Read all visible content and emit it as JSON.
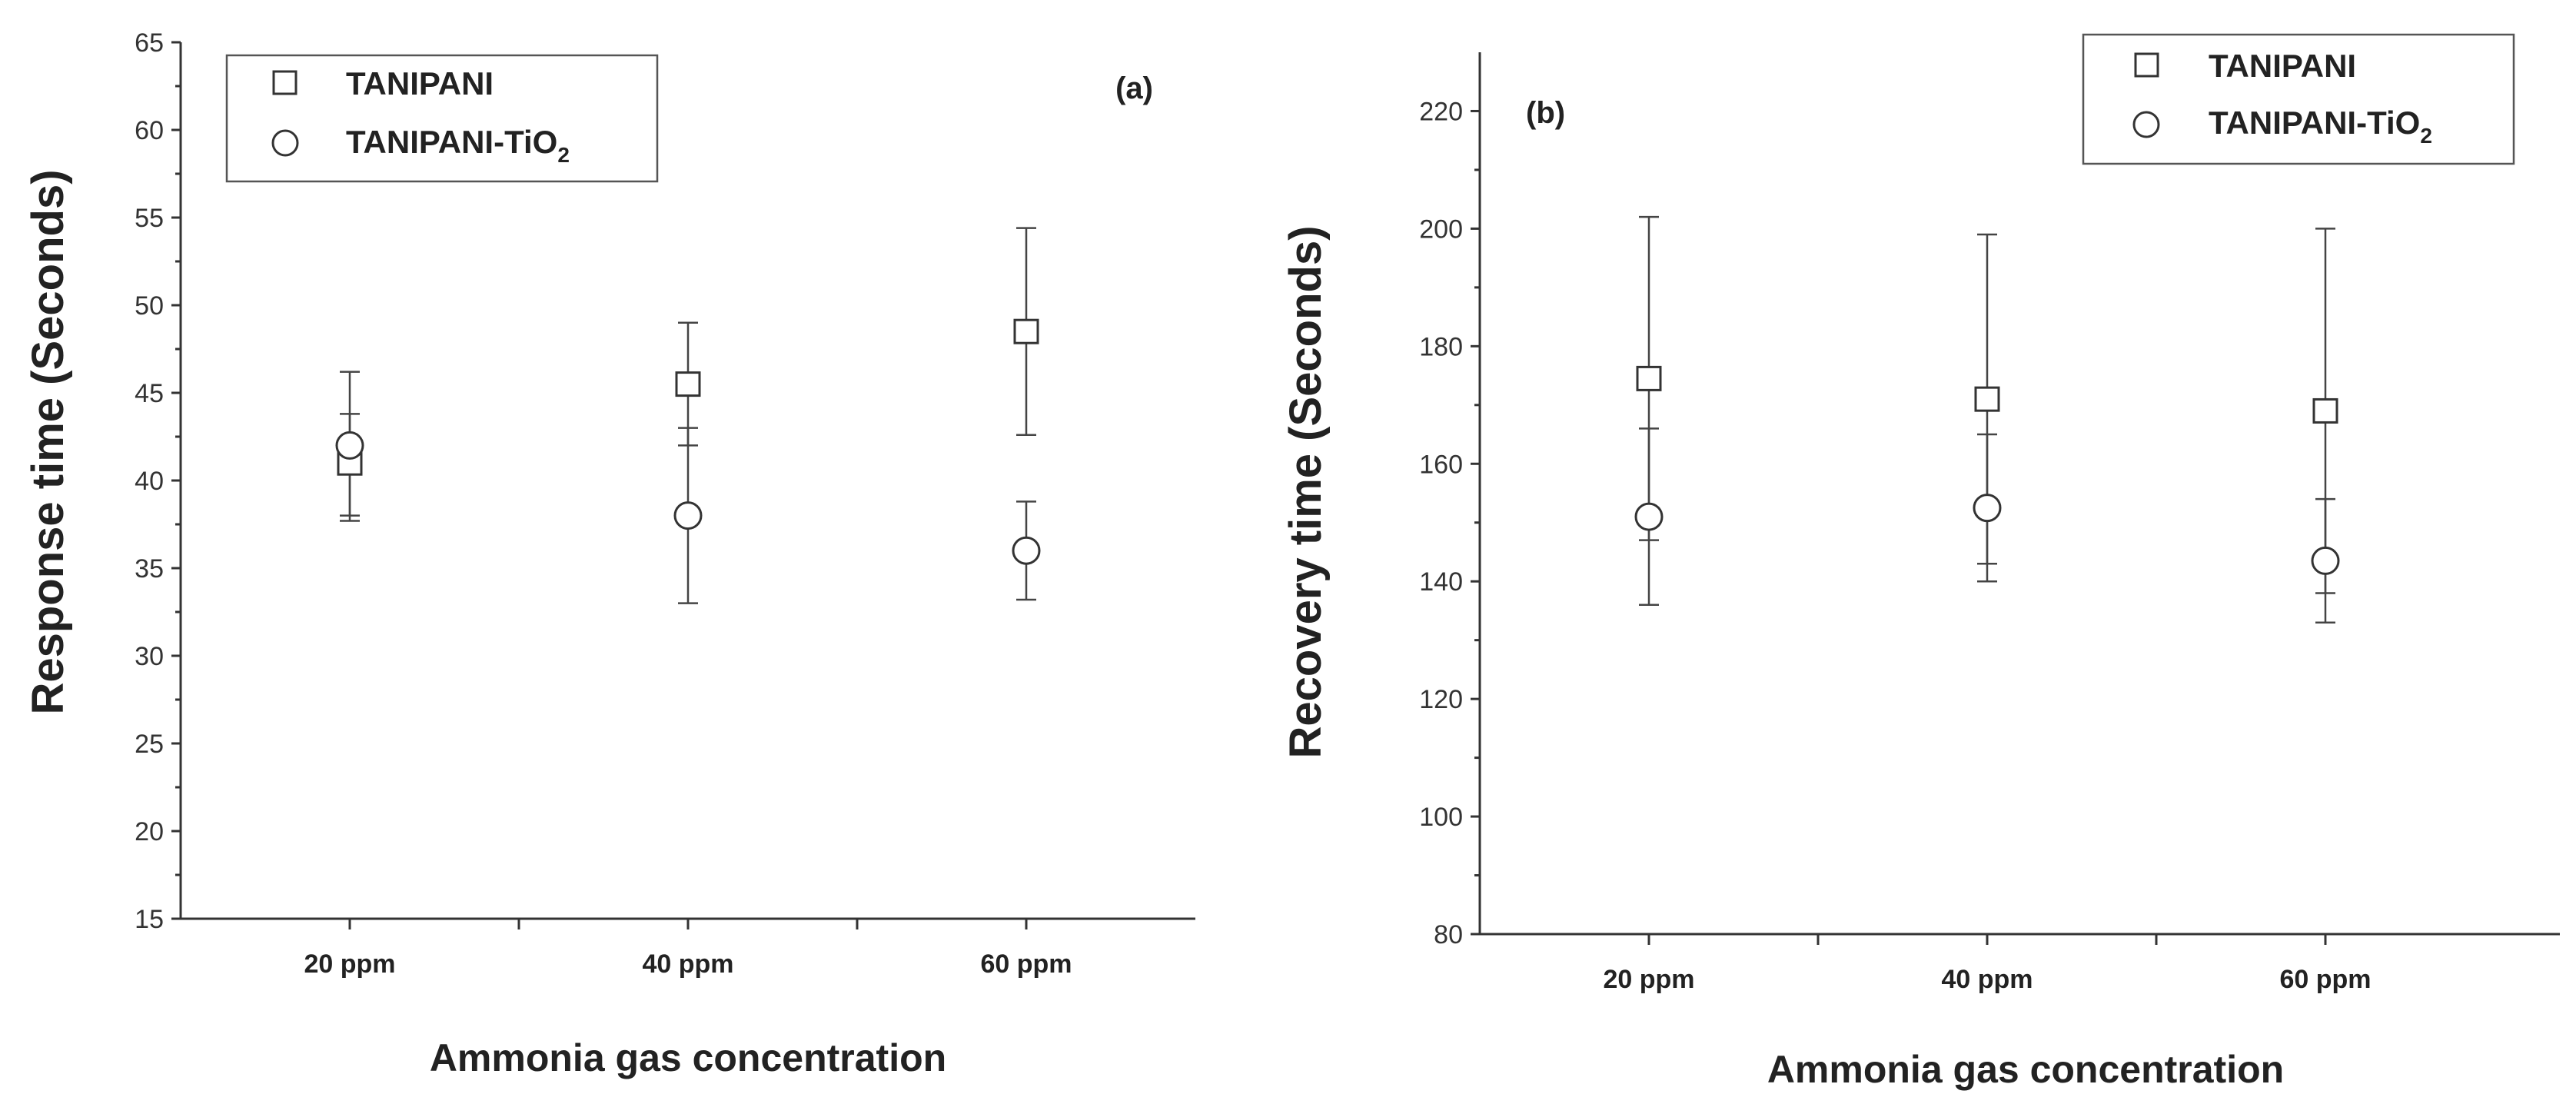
{
  "chart_data": [
    {
      "type": "scatter",
      "panel": "(a)",
      "xlabel": "Ammonia gas concentration",
      "ylabel": "Response time (Seconds)",
      "categories": [
        "20 ppm",
        "40 ppm",
        "60 ppm"
      ],
      "ylim": [
        15,
        65
      ],
      "yticks": [
        15,
        20,
        25,
        30,
        35,
        40,
        45,
        50,
        55,
        60,
        65
      ],
      "legend_position": "top-left",
      "series": [
        {
          "name": "TANIPANI",
          "base": "TANIPANI",
          "sub": "",
          "marker": "square",
          "values": [
            41,
            45.5,
            48.5
          ],
          "err_low": [
            37.7,
            42,
            42.6
          ],
          "err_high": [
            43.8,
            49,
            54.4
          ]
        },
        {
          "name": "TANIPANI-TiO2",
          "base": "TANIPANI-TiO",
          "sub": "2",
          "marker": "circle",
          "values": [
            42,
            38,
            36
          ],
          "err_low": [
            38,
            33,
            33.2
          ],
          "err_high": [
            46.2,
            43,
            38.8
          ]
        }
      ]
    },
    {
      "type": "scatter",
      "panel": "(b)",
      "xlabel": "Ammonia gas concentration",
      "ylabel": "Recovery time (Seconds)",
      "categories": [
        "20 ppm",
        "40 ppm",
        "60 ppm"
      ],
      "ylim": [
        80,
        230
      ],
      "yticks": [
        80,
        100,
        120,
        140,
        160,
        180,
        200,
        220
      ],
      "legend_position": "top-right",
      "series": [
        {
          "name": "TANIPANI",
          "base": "TANIPANI",
          "sub": "",
          "marker": "square",
          "values": [
            174.5,
            171,
            169
          ],
          "err_low": [
            147,
            143,
            138
          ],
          "err_high": [
            202,
            199,
            200
          ]
        },
        {
          "name": "TANIPANI-TiO2",
          "base": "TANIPANI-TiO",
          "sub": "2",
          "marker": "circle",
          "values": [
            151,
            152.5,
            143.5
          ],
          "err_low": [
            136,
            140,
            133
          ],
          "err_high": [
            166,
            165,
            154
          ]
        }
      ]
    }
  ]
}
